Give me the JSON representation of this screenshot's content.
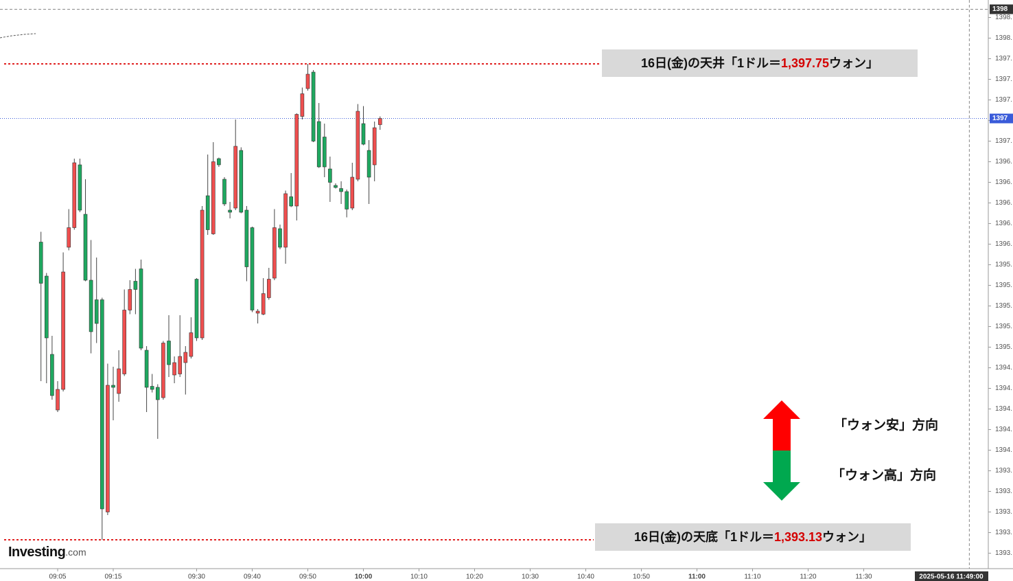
{
  "chart_data": {
    "type": "candlestick",
    "x": [
      542,
      543,
      544,
      545,
      546,
      547,
      548,
      549,
      550,
      551,
      552,
      553,
      554,
      555,
      556,
      557,
      558,
      559,
      560,
      561,
      562,
      563,
      564,
      565,
      566,
      567,
      568,
      569,
      570,
      571,
      572,
      573,
      574,
      575,
      576,
      577,
      578,
      579,
      580,
      581,
      582,
      583,
      584,
      585,
      586,
      587,
      588,
      589,
      590,
      591,
      592,
      593,
      594,
      595,
      596,
      597,
      598,
      599,
      600,
      601,
      602,
      603
    ],
    "open": [
      1396.02,
      1395.69,
      1394.93,
      1394.39,
      1394.59,
      1395.97,
      1396.16,
      1396.77,
      1396.29,
      1395.65,
      1395.46,
      1395.46,
      1393.4,
      1394.63,
      1394.55,
      1394.74,
      1395.36,
      1395.64,
      1395.76,
      1394.97,
      1394.62,
      1394.61,
      1394.51,
      1395.06,
      1394.73,
      1394.74,
      1394.85,
      1394.91,
      1395.66,
      1395.09,
      1396.47,
      1396.1,
      1396.83,
      1396.63,
      1396.33,
      1396.35,
      1396.91,
      1396.33,
      1396.16,
      1395.33,
      1395.32,
      1395.48,
      1395.67,
      1396.15,
      1395.97,
      1396.46,
      1396.37,
      1397.24,
      1397.51,
      1397.67,
      1397.19,
      1397.04,
      1396.73,
      1396.57,
      1396.54,
      1396.51,
      1396.35,
      1396.63,
      1397.17,
      1396.91,
      1396.77,
      1397.16
    ],
    "high": [
      1396.12,
      1395.72,
      1395.11,
      1394.67,
      1395.92,
      1396.34,
      1396.83,
      1396.83,
      1396.63,
      1396.04,
      1395.87,
      1395.48,
      1394.84,
      1394.81,
      1394.97,
      1395.56,
      1395.65,
      1395.76,
      1395.85,
      1395.01,
      1394.74,
      1394.64,
      1395.06,
      1395.31,
      1394.91,
      1395.31,
      1395.01,
      1395.29,
      1395.67,
      1396.37,
      1396.87,
      1396.99,
      1396.84,
      1396.65,
      1396.41,
      1397.21,
      1396.94,
      1396.37,
      1396.17,
      1395.37,
      1395.67,
      1395.77,
      1396.34,
      1396.19,
      1396.52,
      1396.69,
      1397.27,
      1397.52,
      1397.75,
      1397.69,
      1397.37,
      1397.17,
      1396.85,
      1396.59,
      1396.61,
      1396.53,
      1396.79,
      1397.36,
      1397.34,
      1397.01,
      1397.19,
      1397.24
    ],
    "low": [
      1394.67,
      1394.65,
      1394.49,
      1394.37,
      1394.57,
      1395.94,
      1396.14,
      1396.31,
      1395.64,
      1394.94,
      1395.04,
      1393.13,
      1393.37,
      1394.29,
      1394.47,
      1394.72,
      1395.32,
      1395.32,
      1394.97,
      1394.37,
      1394.56,
      1394.11,
      1394.49,
      1394.71,
      1394.65,
      1394.71,
      1394.54,
      1394.89,
      1395.06,
      1395.07,
      1396.09,
      1396.09,
      1396.75,
      1396.37,
      1396.25,
      1396.33,
      1396.3,
      1395.64,
      1395.34,
      1395.23,
      1395.31,
      1395.46,
      1395.65,
      1395.95,
      1395.81,
      1396.36,
      1396.23,
      1397.21,
      1397.49,
      1396.99,
      1396.74,
      1396.65,
      1396.41,
      1396.54,
      1396.39,
      1396.26,
      1396.33,
      1396.61,
      1396.96,
      1396.39,
      1396.61,
      1397.11
    ],
    "close": [
      1395.62,
      1395.09,
      1394.53,
      1394.59,
      1395.73,
      1396.16,
      1396.79,
      1396.33,
      1395.65,
      1395.15,
      1395.23,
      1393.43,
      1394.63,
      1394.61,
      1394.79,
      1395.36,
      1395.56,
      1395.56,
      1394.99,
      1394.61,
      1394.59,
      1394.49,
      1395.04,
      1394.83,
      1394.85,
      1394.91,
      1394.95,
      1395.14,
      1395.09,
      1396.33,
      1396.14,
      1396.8,
      1396.77,
      1396.39,
      1396.31,
      1396.95,
      1396.31,
      1395.78,
      1395.36,
      1395.35,
      1395.52,
      1395.66,
      1396.16,
      1395.97,
      1396.49,
      1396.37,
      1397.26,
      1397.46,
      1397.65,
      1397.0,
      1396.75,
      1396.75,
      1396.6,
      1396.55,
      1396.51,
      1396.34,
      1396.65,
      1397.29,
      1396.97,
      1396.65,
      1397.13,
      1397.22
    ],
    "up_color": "#ef4f4f",
    "down_color": "#1fa860",
    "xlim": [
      534.63,
      712.41
    ],
    "ylim": [
      1392.85,
      1398.37
    ],
    "xticks": [
      {
        "value": 545,
        "label": "09:05"
      },
      {
        "value": 555,
        "label": "09:15"
      },
      {
        "value": 570,
        "label": "09:30"
      },
      {
        "value": 580,
        "label": "09:40"
      },
      {
        "value": 590,
        "label": "09:50"
      },
      {
        "value": 600,
        "label": "10:00"
      },
      {
        "value": 610,
        "label": "10:10"
      },
      {
        "value": 620,
        "label": "10:20"
      },
      {
        "value": 630,
        "label": "10:30"
      },
      {
        "value": 640,
        "label": "10:40"
      },
      {
        "value": 650,
        "label": "10:50"
      },
      {
        "value": 660,
        "label": "11:00"
      },
      {
        "value": 670,
        "label": "11:10"
      },
      {
        "value": 680,
        "label": "11:20"
      },
      {
        "value": 690,
        "label": "11:30"
      }
    ],
    "yticks": [
      {
        "value": 1398.2,
        "label": "1398."
      },
      {
        "value": 1398.0,
        "label": "1398."
      },
      {
        "value": 1397.8,
        "label": "1397."
      },
      {
        "value": 1397.6,
        "label": "1397."
      },
      {
        "value": 1397.4,
        "label": "1397."
      },
      {
        "value": 1397.2,
        "label": "1397."
      },
      {
        "value": 1397.0,
        "label": "1397."
      },
      {
        "value": 1396.8,
        "label": "1396."
      },
      {
        "value": 1396.6,
        "label": "1396."
      },
      {
        "value": 1396.4,
        "label": "1396."
      },
      {
        "value": 1396.2,
        "label": "1396."
      },
      {
        "value": 1396.0,
        "label": "1396."
      },
      {
        "value": 1395.8,
        "label": "1395."
      },
      {
        "value": 1395.6,
        "label": "1395."
      },
      {
        "value": 1395.4,
        "label": "1395."
      },
      {
        "value": 1395.2,
        "label": "1395."
      },
      {
        "value": 1395.0,
        "label": "1395."
      },
      {
        "value": 1394.8,
        "label": "1394."
      },
      {
        "value": 1394.6,
        "label": "1394."
      },
      {
        "value": 1394.4,
        "label": "1394."
      },
      {
        "value": 1394.2,
        "label": "1394."
      },
      {
        "value": 1394.0,
        "label": "1394."
      },
      {
        "value": 1393.8,
        "label": "1393."
      },
      {
        "value": 1393.6,
        "label": "1393."
      },
      {
        "value": 1393.4,
        "label": "1393."
      },
      {
        "value": 1393.2,
        "label": "1393."
      },
      {
        "value": 1393.0,
        "label": "1393."
      }
    ],
    "last_price": {
      "value": 1397.22,
      "label": "1397"
    },
    "crosshair": {
      "value": 1398.28,
      "label": "1398",
      "time": 709,
      "time_label": "2025-05-16 11:49:00"
    },
    "annotations": [
      {
        "value": 1397.75,
        "prefix": "16日(金)の天井「1ドル＝",
        "value_label": "1,397.75",
        "suffix": "ウォン」"
      },
      {
        "value": 1393.13,
        "prefix": "16日(金)の天底「1ドル＝",
        "value_label": "1,393.13",
        "suffix": "ウォン」"
      }
    ],
    "direction_labels": [
      "「ウォン安」方向",
      "「ウォン高」方向"
    ],
    "logo": {
      "name": "Investing",
      "suffix": ".com"
    }
  }
}
